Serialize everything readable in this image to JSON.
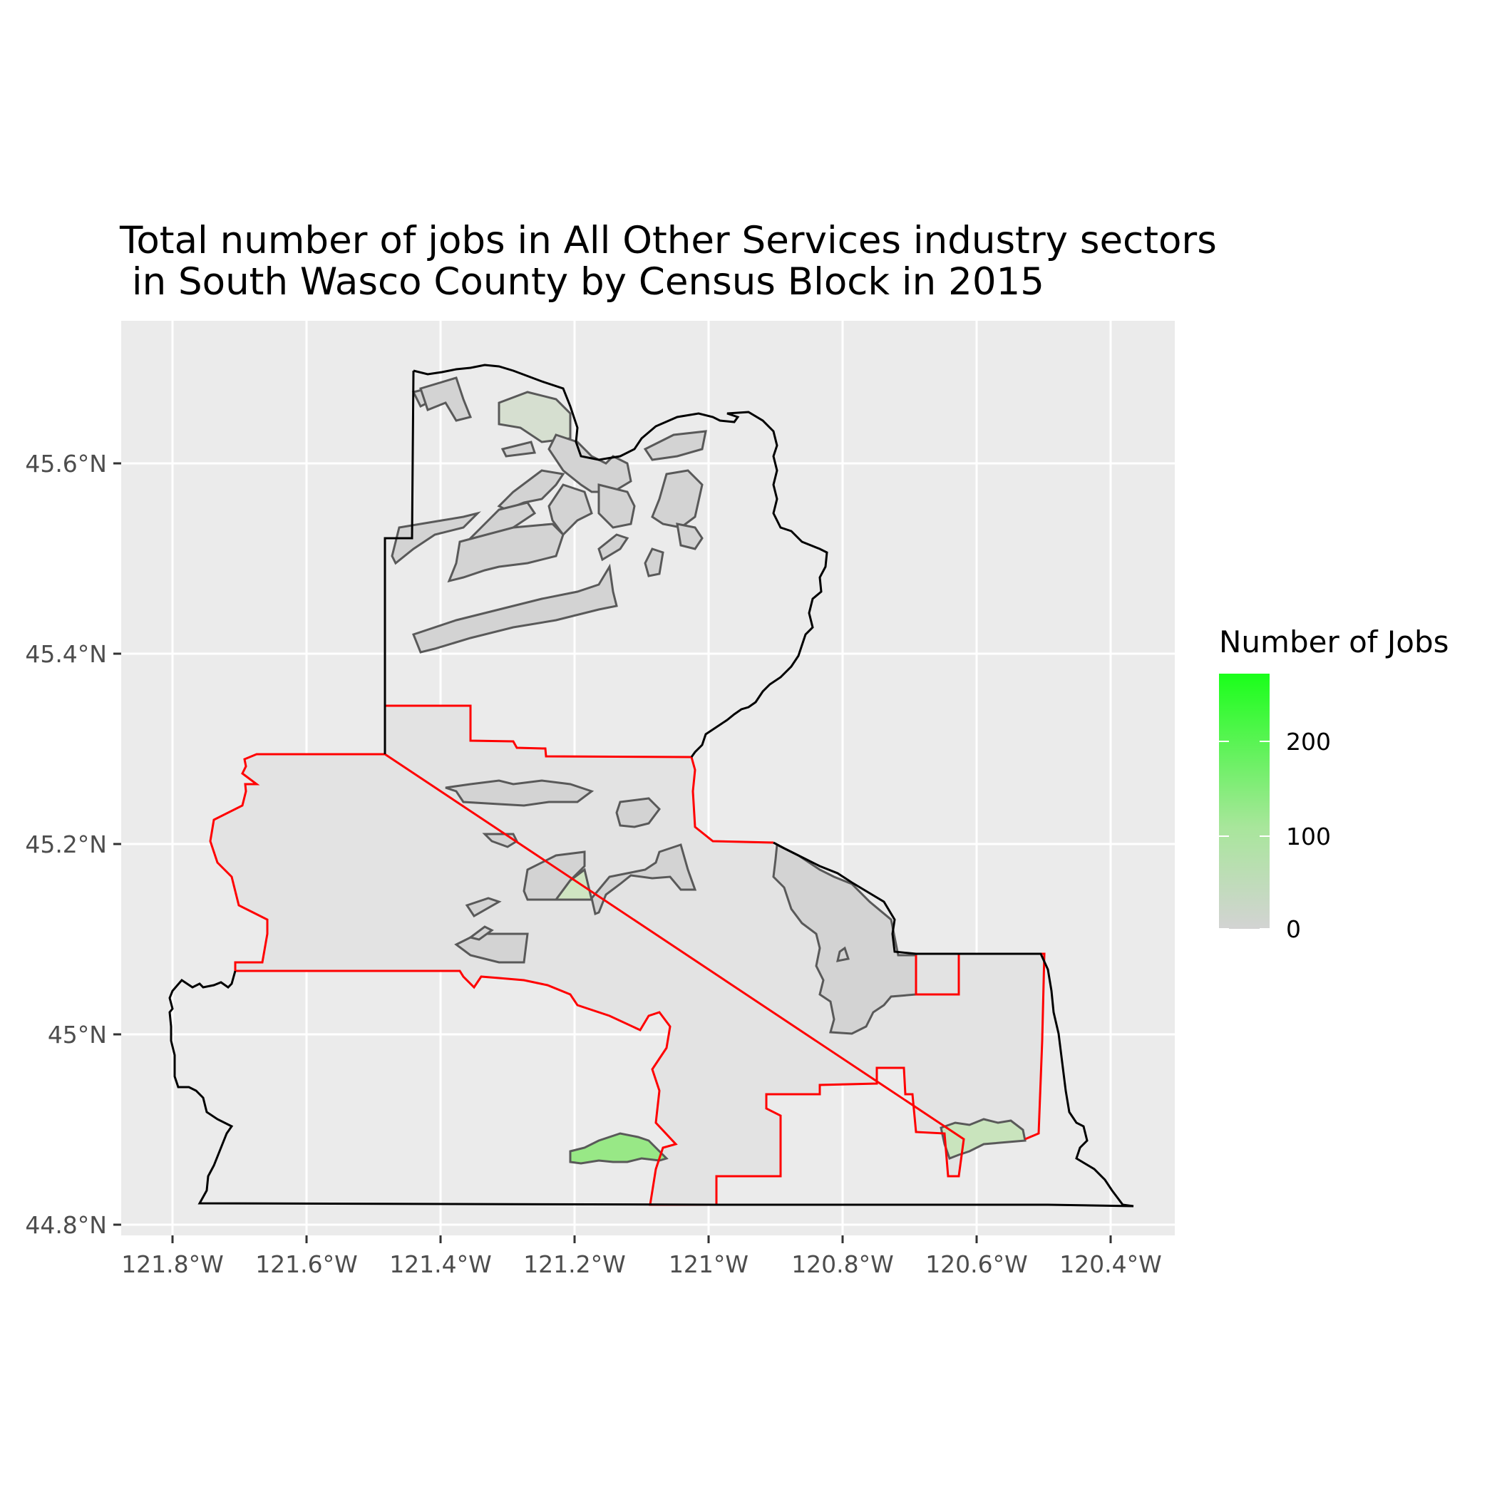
{
  "title_line1": "Total number of jobs in All Other Services industry sectors",
  "title_line2": " in South Wasco County by Census Block in 2015",
  "colors": {
    "panel": "#ebebeb",
    "grid": "#ffffff",
    "county_outline": "#000000",
    "south_wasco_outline": "#ff0000",
    "block_outline": "#595959",
    "low": "#d3d3d3",
    "high": "#1aff1a"
  },
  "axes": {
    "x_ticks": [
      "121.8°W",
      "121.6°W",
      "121.4°W",
      "121.2°W",
      "121°W",
      "120.8°W",
      "120.6°W",
      "120.4°W"
    ],
    "y_ticks": [
      "45.6°N",
      "45.4°N",
      "45.2°N",
      "45°N",
      "44.8°N"
    ],
    "x_range": [
      -121.875,
      -120.3
    ],
    "y_range": [
      44.78,
      45.725
    ]
  },
  "legend": {
    "title": "Number of Jobs",
    "labels": [
      "200",
      "100",
      "0"
    ],
    "range": [
      0,
      270
    ]
  }
}
